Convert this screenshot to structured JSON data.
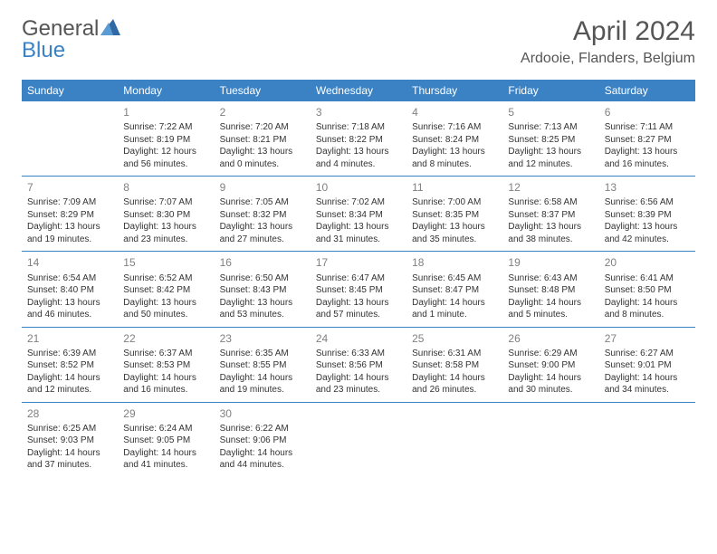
{
  "logo": {
    "part1": "General",
    "part2": "Blue"
  },
  "title": "April 2024",
  "location": "Ardooie, Flanders, Belgium",
  "colors": {
    "header_bg": "#3b82c4",
    "header_text": "#ffffff",
    "text": "#333333",
    "muted": "#808080",
    "rule": "#3b82c4"
  },
  "typography": {
    "title_fontsize": 30,
    "location_fontsize": 16,
    "dayheader_fontsize": 12,
    "daynum_fontsize": 12,
    "body_fontsize": 10
  },
  "dayHeaders": [
    "Sunday",
    "Monday",
    "Tuesday",
    "Wednesday",
    "Thursday",
    "Friday",
    "Saturday"
  ],
  "weeks": [
    [
      null,
      {
        "n": "1",
        "sr": "Sunrise: 7:22 AM",
        "ss": "Sunset: 8:19 PM",
        "dl": "Daylight: 12 hours and 56 minutes."
      },
      {
        "n": "2",
        "sr": "Sunrise: 7:20 AM",
        "ss": "Sunset: 8:21 PM",
        "dl": "Daylight: 13 hours and 0 minutes."
      },
      {
        "n": "3",
        "sr": "Sunrise: 7:18 AM",
        "ss": "Sunset: 8:22 PM",
        "dl": "Daylight: 13 hours and 4 minutes."
      },
      {
        "n": "4",
        "sr": "Sunrise: 7:16 AM",
        "ss": "Sunset: 8:24 PM",
        "dl": "Daylight: 13 hours and 8 minutes."
      },
      {
        "n": "5",
        "sr": "Sunrise: 7:13 AM",
        "ss": "Sunset: 8:25 PM",
        "dl": "Daylight: 13 hours and 12 minutes."
      },
      {
        "n": "6",
        "sr": "Sunrise: 7:11 AM",
        "ss": "Sunset: 8:27 PM",
        "dl": "Daylight: 13 hours and 16 minutes."
      }
    ],
    [
      {
        "n": "7",
        "sr": "Sunrise: 7:09 AM",
        "ss": "Sunset: 8:29 PM",
        "dl": "Daylight: 13 hours and 19 minutes."
      },
      {
        "n": "8",
        "sr": "Sunrise: 7:07 AM",
        "ss": "Sunset: 8:30 PM",
        "dl": "Daylight: 13 hours and 23 minutes."
      },
      {
        "n": "9",
        "sr": "Sunrise: 7:05 AM",
        "ss": "Sunset: 8:32 PM",
        "dl": "Daylight: 13 hours and 27 minutes."
      },
      {
        "n": "10",
        "sr": "Sunrise: 7:02 AM",
        "ss": "Sunset: 8:34 PM",
        "dl": "Daylight: 13 hours and 31 minutes."
      },
      {
        "n": "11",
        "sr": "Sunrise: 7:00 AM",
        "ss": "Sunset: 8:35 PM",
        "dl": "Daylight: 13 hours and 35 minutes."
      },
      {
        "n": "12",
        "sr": "Sunrise: 6:58 AM",
        "ss": "Sunset: 8:37 PM",
        "dl": "Daylight: 13 hours and 38 minutes."
      },
      {
        "n": "13",
        "sr": "Sunrise: 6:56 AM",
        "ss": "Sunset: 8:39 PM",
        "dl": "Daylight: 13 hours and 42 minutes."
      }
    ],
    [
      {
        "n": "14",
        "sr": "Sunrise: 6:54 AM",
        "ss": "Sunset: 8:40 PM",
        "dl": "Daylight: 13 hours and 46 minutes."
      },
      {
        "n": "15",
        "sr": "Sunrise: 6:52 AM",
        "ss": "Sunset: 8:42 PM",
        "dl": "Daylight: 13 hours and 50 minutes."
      },
      {
        "n": "16",
        "sr": "Sunrise: 6:50 AM",
        "ss": "Sunset: 8:43 PM",
        "dl": "Daylight: 13 hours and 53 minutes."
      },
      {
        "n": "17",
        "sr": "Sunrise: 6:47 AM",
        "ss": "Sunset: 8:45 PM",
        "dl": "Daylight: 13 hours and 57 minutes."
      },
      {
        "n": "18",
        "sr": "Sunrise: 6:45 AM",
        "ss": "Sunset: 8:47 PM",
        "dl": "Daylight: 14 hours and 1 minute."
      },
      {
        "n": "19",
        "sr": "Sunrise: 6:43 AM",
        "ss": "Sunset: 8:48 PM",
        "dl": "Daylight: 14 hours and 5 minutes."
      },
      {
        "n": "20",
        "sr": "Sunrise: 6:41 AM",
        "ss": "Sunset: 8:50 PM",
        "dl": "Daylight: 14 hours and 8 minutes."
      }
    ],
    [
      {
        "n": "21",
        "sr": "Sunrise: 6:39 AM",
        "ss": "Sunset: 8:52 PM",
        "dl": "Daylight: 14 hours and 12 minutes."
      },
      {
        "n": "22",
        "sr": "Sunrise: 6:37 AM",
        "ss": "Sunset: 8:53 PM",
        "dl": "Daylight: 14 hours and 16 minutes."
      },
      {
        "n": "23",
        "sr": "Sunrise: 6:35 AM",
        "ss": "Sunset: 8:55 PM",
        "dl": "Daylight: 14 hours and 19 minutes."
      },
      {
        "n": "24",
        "sr": "Sunrise: 6:33 AM",
        "ss": "Sunset: 8:56 PM",
        "dl": "Daylight: 14 hours and 23 minutes."
      },
      {
        "n": "25",
        "sr": "Sunrise: 6:31 AM",
        "ss": "Sunset: 8:58 PM",
        "dl": "Daylight: 14 hours and 26 minutes."
      },
      {
        "n": "26",
        "sr": "Sunrise: 6:29 AM",
        "ss": "Sunset: 9:00 PM",
        "dl": "Daylight: 14 hours and 30 minutes."
      },
      {
        "n": "27",
        "sr": "Sunrise: 6:27 AM",
        "ss": "Sunset: 9:01 PM",
        "dl": "Daylight: 14 hours and 34 minutes."
      }
    ],
    [
      {
        "n": "28",
        "sr": "Sunrise: 6:25 AM",
        "ss": "Sunset: 9:03 PM",
        "dl": "Daylight: 14 hours and 37 minutes."
      },
      {
        "n": "29",
        "sr": "Sunrise: 6:24 AM",
        "ss": "Sunset: 9:05 PM",
        "dl": "Daylight: 14 hours and 41 minutes."
      },
      {
        "n": "30",
        "sr": "Sunrise: 6:22 AM",
        "ss": "Sunset: 9:06 PM",
        "dl": "Daylight: 14 hours and 44 minutes."
      },
      null,
      null,
      null,
      null
    ]
  ]
}
